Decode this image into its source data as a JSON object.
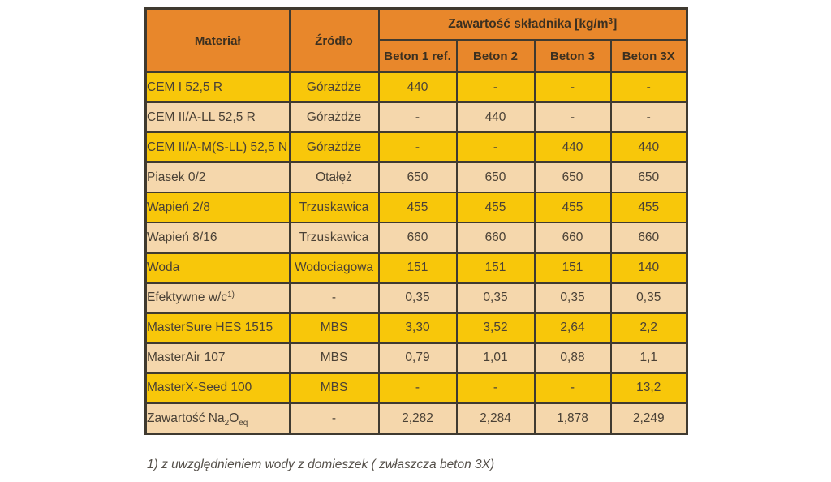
{
  "colors": {
    "header_bg": "#e8872b",
    "row_yellow": "#f8c70a",
    "row_peach": "#f5d7ac",
    "border": "#3f3a30",
    "text": "#4a4136"
  },
  "table": {
    "header": {
      "col_material": "Materiał",
      "col_source": "Źródło",
      "col_group": "Zawartość składnika [kg/m^{3}]",
      "col_mixes": [
        "Beton 1 ref.",
        "Beton 2",
        "Beton 3",
        "Beton 3X"
      ]
    },
    "rows": [
      {
        "material": "CEM I 52,5 R",
        "source": "Górażdże",
        "values": [
          "440",
          "-",
          "-",
          "-"
        ]
      },
      {
        "material": "CEM II/A-LL 52,5 R",
        "source": "Górażdże",
        "values": [
          "-",
          "440",
          "-",
          "-"
        ]
      },
      {
        "material": "CEM II/A-M(S-LL) 52,5 N",
        "source": "Górażdże",
        "values": [
          "-",
          "-",
          "440",
          "440"
        ]
      },
      {
        "material": "Piasek 0/2",
        "source": "Otałęż",
        "values": [
          "650",
          "650",
          "650",
          "650"
        ]
      },
      {
        "material": "Wapień 2/8",
        "source": "Trzuskawica",
        "values": [
          "455",
          "455",
          "455",
          "455"
        ]
      },
      {
        "material": "Wapień 8/16",
        "source": "Trzuskawica",
        "values": [
          "660",
          "660",
          "660",
          "660"
        ]
      },
      {
        "material": "Woda",
        "source": "Wodociagowa",
        "values": [
          "151",
          "151",
          "151",
          "140"
        ]
      },
      {
        "material": "Efektywne w/c^{1)}",
        "source": "-",
        "values": [
          "0,35",
          "0,35",
          "0,35",
          "0,35"
        ]
      },
      {
        "material": "MasterSure HES 1515",
        "source": "MBS",
        "values": [
          "3,30",
          "3,52",
          "2,64",
          "2,2"
        ]
      },
      {
        "material": "MasterAir 107",
        "source": "MBS",
        "values": [
          "0,79",
          "1,01",
          "0,88",
          "1,1"
        ]
      },
      {
        "material": "MasterX-Seed 100",
        "source": "MBS",
        "values": [
          "-",
          "-",
          "-",
          "13,2"
        ]
      },
      {
        "material": "Zawartość Na_{2}O_{eq}",
        "source": "-",
        "values": [
          "2,282",
          "2,284",
          "1,878",
          "2,249"
        ]
      }
    ]
  },
  "footnote": "1) z uwzględnieniem wody z domieszek ( zwłaszcza beton 3X)"
}
